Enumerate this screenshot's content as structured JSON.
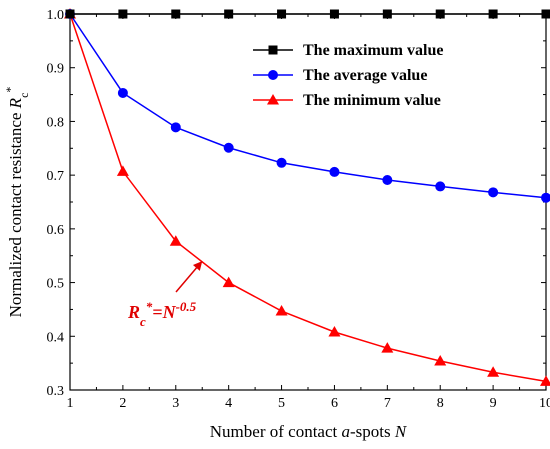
{
  "chart_data": {
    "type": "line",
    "title": "",
    "xlabel_parts": [
      {
        "text": "Number of contact ",
        "italic": false
      },
      {
        "text": "a",
        "italic": true
      },
      {
        "text": "-spots ",
        "italic": false
      },
      {
        "text": "N",
        "italic": true
      }
    ],
    "ylabel_parts": [
      {
        "text": "Normalized contact resistance ",
        "style": "normal"
      },
      {
        "text": "R",
        "style": "italic"
      },
      {
        "text": "c",
        "style": "sub"
      },
      {
        "text": "*",
        "style": "sup"
      }
    ],
    "xlim": [
      1,
      10
    ],
    "ylim": [
      0.3,
      1.0
    ],
    "x_ticks": [
      "1",
      "2",
      "3",
      "4",
      "5",
      "6",
      "7",
      "8",
      "9",
      "10"
    ],
    "y_ticks": [
      "0.3",
      "0.4",
      "0.5",
      "0.6",
      "0.7",
      "0.8",
      "0.9",
      "1.0"
    ],
    "grid": false,
    "legend_position": "top-right",
    "x": [
      1,
      2,
      3,
      4,
      5,
      6,
      7,
      8,
      9,
      10
    ],
    "series": [
      {
        "name": "The maximum value",
        "color": "#000000",
        "marker": "square",
        "values": [
          1.0,
          1.0,
          1.0,
          1.0,
          1.0,
          1.0,
          1.0,
          1.0,
          1.0,
          1.0
        ]
      },
      {
        "name": "The average value",
        "color": "#0000ff",
        "marker": "circle",
        "values": [
          1.0,
          0.853,
          0.789,
          0.751,
          0.723,
          0.706,
          0.691,
          0.679,
          0.668,
          0.658
        ]
      },
      {
        "name": "The minimum value",
        "color": "#ff0000",
        "marker": "triangle",
        "values": [
          1.0,
          0.707,
          0.577,
          0.5,
          0.447,
          0.408,
          0.378,
          0.354,
          0.333,
          0.316
        ]
      }
    ],
    "annotation": {
      "parts": [
        {
          "text": "R",
          "style": "normal"
        },
        {
          "text": "c",
          "style": "sub"
        },
        {
          "text": "*",
          "style": "sup"
        },
        {
          "text": "=",
          "style": "normal"
        },
        {
          "text": "N",
          "style": "normal"
        },
        {
          "text": "-0.5",
          "style": "sup"
        }
      ],
      "color": "#e00000",
      "arrow_target": [
        3.5,
        0.54
      ]
    }
  }
}
